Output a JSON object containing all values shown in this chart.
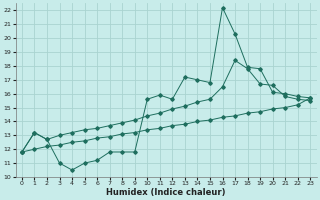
{
  "xlabel": "Humidex (Indice chaleur)",
  "ylabel": "",
  "bg_color": "#c8ecea",
  "grid_color": "#aad4d0",
  "line_color": "#1e6e5e",
  "xlim": [
    -0.5,
    23.5
  ],
  "ylim": [
    10,
    22.5
  ],
  "yticks": [
    10,
    11,
    12,
    13,
    14,
    15,
    16,
    17,
    18,
    19,
    20,
    21,
    22
  ],
  "xticks": [
    0,
    1,
    2,
    3,
    4,
    5,
    6,
    7,
    8,
    9,
    10,
    11,
    12,
    13,
    14,
    15,
    16,
    17,
    18,
    19,
    20,
    21,
    22,
    23
  ],
  "series1_x": [
    0,
    1,
    2,
    3,
    4,
    5,
    6,
    7,
    8,
    9,
    10,
    11,
    12,
    13,
    14,
    15,
    16,
    17,
    18,
    19,
    20,
    21,
    22,
    23
  ],
  "series1_y": [
    11.8,
    13.2,
    12.7,
    11.0,
    10.5,
    11.0,
    11.2,
    11.8,
    11.8,
    11.8,
    15.6,
    15.9,
    15.6,
    17.2,
    17.0,
    16.8,
    22.2,
    20.3,
    17.9,
    17.8,
    16.1,
    16.0,
    15.8,
    15.7
  ],
  "series2_x": [
    0,
    1,
    2,
    3,
    4,
    5,
    6,
    7,
    8,
    9,
    10,
    11,
    12,
    13,
    14,
    15,
    16,
    17,
    18,
    19,
    20,
    21,
    22,
    23
  ],
  "series2_y": [
    11.8,
    13.2,
    12.7,
    13.0,
    13.2,
    13.4,
    13.5,
    13.7,
    13.9,
    14.1,
    14.4,
    14.6,
    14.9,
    15.1,
    15.4,
    15.6,
    16.5,
    18.4,
    17.8,
    16.7,
    16.6,
    15.8,
    15.6,
    15.5
  ],
  "series3_x": [
    0,
    1,
    2,
    3,
    4,
    5,
    6,
    7,
    8,
    9,
    10,
    11,
    12,
    13,
    14,
    15,
    16,
    17,
    18,
    19,
    20,
    21,
    22,
    23
  ],
  "series3_y": [
    11.8,
    12.0,
    12.2,
    12.3,
    12.5,
    12.6,
    12.8,
    12.9,
    13.1,
    13.2,
    13.4,
    13.5,
    13.7,
    13.8,
    14.0,
    14.1,
    14.3,
    14.4,
    14.6,
    14.7,
    14.9,
    15.0,
    15.2,
    15.7
  ]
}
